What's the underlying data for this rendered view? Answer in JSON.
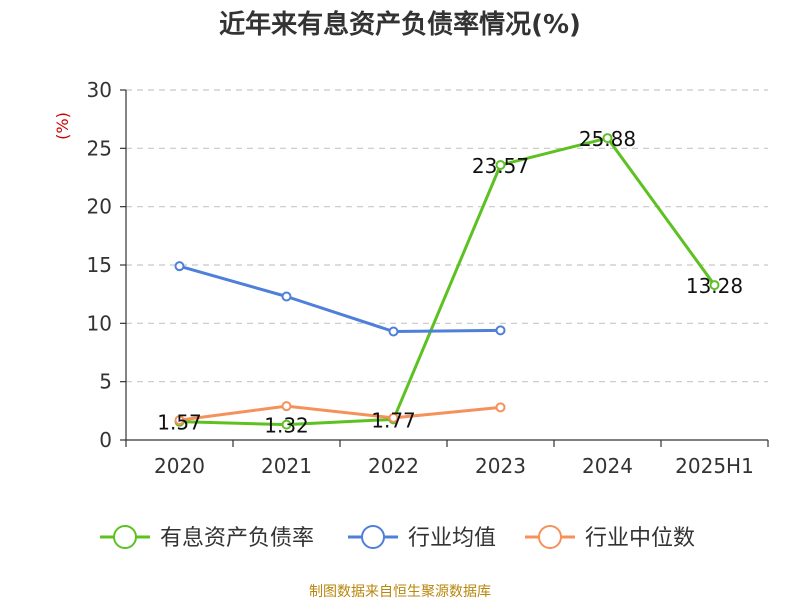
{
  "chart_data": {
    "type": "line",
    "title": "近年来有息资产负债率情况(%)",
    "ylabel": "(%)",
    "categories": [
      "2020",
      "2021",
      "2022",
      "2023",
      "2024",
      "2025H1"
    ],
    "ylim": [
      0,
      30
    ],
    "yticks": [
      0,
      5,
      10,
      15,
      20,
      25,
      30
    ],
    "grid": "horizontal dashed",
    "legend_position": "bottom",
    "series": [
      {
        "name": "有息资产负债率",
        "color": "#5dc122",
        "values": [
          1.57,
          1.32,
          1.77,
          23.57,
          25.88,
          13.28
        ],
        "labels": [
          "1.57",
          "1.32",
          "1.77",
          "23.57",
          "25.88",
          "13.28"
        ]
      },
      {
        "name": "行业均值",
        "color": "#4e7fd9",
        "values": [
          14.9,
          12.3,
          9.3,
          9.4,
          null,
          null
        ]
      },
      {
        "name": "行业中位数",
        "color": "#f5915a",
        "values": [
          1.7,
          2.9,
          1.9,
          2.8,
          null,
          null
        ]
      }
    ],
    "source": "制图数据来自恒生聚源数据库"
  }
}
